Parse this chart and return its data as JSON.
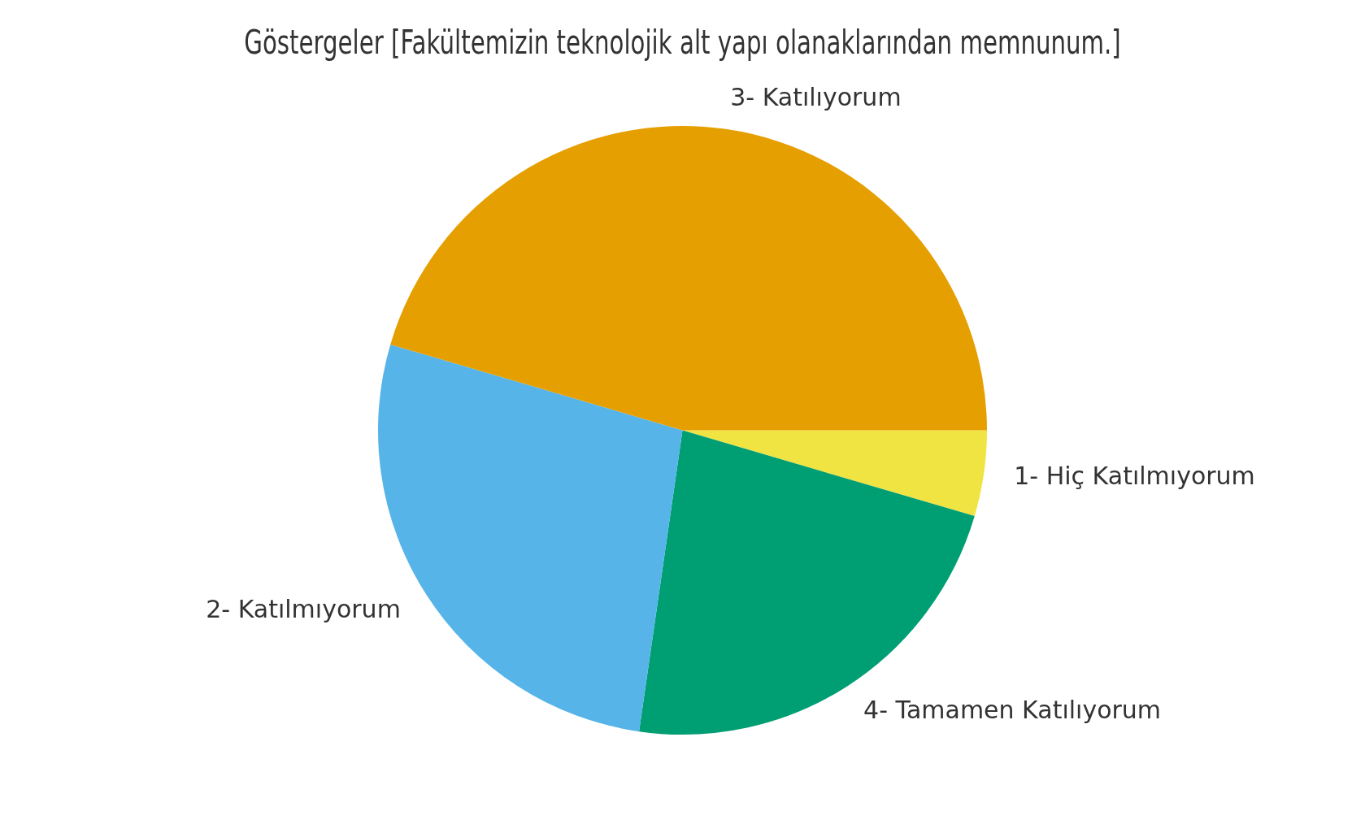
{
  "chart_data": {
    "type": "pie",
    "title": "Göstergeler [Fakültemizin teknolojik alt yapı olanaklarından memnunum.]",
    "categories": [
      "1- Hiç Katılmıyorum",
      "4- Tamamen Katılıyorum",
      "2- Katılmıyorum",
      "3- Katılıyorum"
    ],
    "values": [
      4.55,
      22.73,
      27.27,
      45.45
    ],
    "colors": [
      "#f0e442",
      "#009e73",
      "#56b4e9",
      "#e69f00"
    ],
    "legend": false
  }
}
